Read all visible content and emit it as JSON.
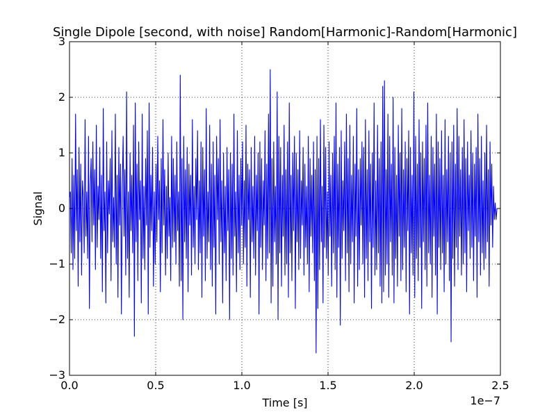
{
  "chart_data": {
    "type": "line",
    "title": "Single  Dipole [second, with noise] Random[Harmonic]-Random[Harmonic]",
    "xlabel": "Time [s]",
    "ylabel": "Signal",
    "x_multiplier_label": "1e−7",
    "xlim": [
      0.0,
      2.5
    ],
    "ylim": [
      -3,
      3
    ],
    "x_ticks": [
      0.0,
      0.5,
      1.0,
      1.5,
      2.0,
      2.5
    ],
    "x_tick_labels": [
      "0.0",
      "0.5",
      "1.0",
      "1.5",
      "2.0",
      "2.5"
    ],
    "y_ticks": [
      -3,
      -2,
      -1,
      0,
      1,
      2,
      3
    ],
    "y_tick_labels": [
      "−3",
      "−2",
      "−1",
      "0",
      "1",
      "2",
      "3"
    ],
    "grid": true,
    "series": [
      {
        "color": "#0000ff",
        "x_start": 0.0,
        "x_end": 2.48,
        "values": [
          0.2,
          0.3,
          -0.8,
          0.9,
          -1.1,
          0.6,
          -0.9,
          1.7,
          -0.4,
          0.7,
          -1.4,
          1.1,
          -0.6,
          0.8,
          -1.2,
          0.5,
          0.2,
          -0.8,
          1.6,
          -0.5,
          0.3,
          -0.9,
          1.3,
          -1.8,
          0.4,
          0.9,
          -0.6,
          1.2,
          -0.3,
          0.7,
          -1.1,
          1.5,
          -0.7,
          0.4,
          -0.2,
          1.1,
          -0.9,
          0.6,
          -1.5,
          1.8,
          -0.4,
          0.3,
          -1.7,
          1.2,
          -0.8,
          0.5,
          -0.1,
          0.9,
          -1.3,
          1.4,
          -0.6,
          0.2,
          -0.7,
          1.7,
          -1.0,
          0.6,
          -1.6,
          1.1,
          -0.3,
          0.8,
          -1.9,
          0.4,
          1.3,
          -0.5,
          0.7,
          -1.2,
          2.1,
          -0.9,
          0.3,
          -1.6,
          1.0,
          -0.4,
          0.6,
          -0.8,
          1.5,
          -2.3,
          1.9,
          -0.6,
          0.8,
          -1.3,
          1.2,
          -0.2,
          0.5,
          -1.7,
          1.7,
          -0.9,
          0.4,
          -1.1,
          0.9,
          -0.3,
          1.4,
          -1.9,
          1.9,
          -0.7,
          0.6,
          -0.4,
          1.1,
          -1.4,
          0.3,
          -1.0,
          0.8,
          -0.6,
          1.3,
          -0.2,
          0.5,
          -1.5,
          0.9,
          -0.8,
          1.6,
          -0.3,
          0.7,
          -1.2,
          0.4,
          -0.9,
          1.0,
          -0.5,
          0.2,
          -1.3,
          1.3,
          -0.7,
          0.9,
          -0.6,
          0.6,
          -1.0,
          1.2,
          -0.4,
          0.3,
          -1.4,
          2.4,
          -1.3,
          0.9,
          -2.0,
          1.3,
          -0.6,
          0.7,
          -0.9,
          1.1,
          -1.5,
          0.8,
          -0.3,
          0.6,
          -1.2,
          1.6,
          -0.7,
          0.4,
          -1.0,
          0.9,
          -0.2,
          1.4,
          -1.1,
          0.5,
          -0.8,
          1.2,
          -1.6,
          1.1,
          -0.5,
          0.7,
          -1.3,
          1.8,
          -0.9,
          0.3,
          -0.6,
          1.5,
          -1.1,
          0.8,
          -1.4,
          1.2,
          -0.7,
          0.6,
          -1.9,
          1.3,
          -0.2,
          0.9,
          -1.0,
          1.6,
          -0.6,
          0.5,
          -1.7,
          1.0,
          -0.8,
          0.4,
          -1.3,
          1.1,
          -0.4,
          0.7,
          -2.0,
          1.0,
          -0.9,
          0.8,
          -1.2,
          1.7,
          -0.5,
          0.3,
          -1.5,
          1.4,
          -0.8,
          0.6,
          -1.1,
          0.9,
          -0.3,
          1.2,
          -1.0,
          0.5,
          -0.7,
          1.5,
          -1.4,
          0.8,
          -0.2,
          0.7,
          -1.6,
          1.1,
          -0.6,
          0.4,
          -0.9,
          1.3,
          -1.2,
          0.6,
          -0.4,
          1.0,
          -1.9,
          1.2,
          -0.7,
          0.9,
          -1.1,
          0.5,
          -0.3,
          1.4,
          -1.3,
          0.8,
          -0.9,
          1.7,
          -0.8,
          2.5,
          -1.7,
          0.9,
          -1.4,
          1.2,
          -0.6,
          0.4,
          -1.0,
          2.1,
          -2.0,
          1.3,
          -0.8,
          1.1,
          -1.4,
          0.6,
          -0.5,
          1.5,
          -1.2,
          0.7,
          -1.0,
          1.2,
          -1.6,
          1.9,
          -0.8,
          0.6,
          -1.3,
          1.0,
          -0.4,
          1.3,
          -1.8,
          1.0,
          -0.6,
          0.7,
          -1.1,
          1.4,
          -0.9,
          0.5,
          -0.3,
          1.1,
          -1.2,
          0.8,
          -0.7,
          0.4,
          -1.0,
          1.3,
          -1.5,
          0.9,
          -0.5,
          0.6,
          -0.8,
          1.2,
          -1.3,
          0.7,
          -2.6,
          1.3,
          -1.8,
          0.9,
          -1.1,
          1.6,
          -0.6,
          0.4,
          -1.7,
          1.5,
          -0.7,
          1.1,
          -0.9,
          0.3,
          -1.2,
          1.2,
          -0.5,
          0.6,
          -1.4,
          1.0,
          -0.8,
          1.3,
          -1.1,
          1.9,
          -1.6,
          0.8,
          -0.7,
          1.1,
          -2.1,
          1.4,
          -0.9,
          0.5,
          -0.4,
          1.2,
          -1.3,
          1.7,
          -0.8,
          0.9,
          -1.5,
          1.5,
          -1.0,
          0.6,
          -0.6,
          1.3,
          -1.7,
          0.8,
          -0.5,
          1.8,
          -1.4,
          0.7,
          -1.1,
          0.9,
          -0.3,
          1.2,
          -1.0,
          1.1,
          -1.6,
          1.6,
          -0.9,
          0.7,
          -1.3,
          1.4,
          -0.6,
          0.8,
          -1.8,
          1.0,
          -0.7,
          1.9,
          -1.2,
          0.5,
          -1.1,
          1.5,
          -0.8,
          0.9,
          -1.4,
          1.2,
          -1.7,
          2.2,
          -1.5,
          2.3,
          -1.2,
          0.7,
          -1.0,
          1.7,
          -1.6,
          1.3,
          -0.6,
          0.8,
          -1.2,
          2.0,
          -1.7,
          1.1,
          -0.9,
          0.6,
          -1.4,
          1.5,
          -0.5,
          1.0,
          -1.3,
          1.8,
          -1.1,
          0.7,
          -0.7,
          1.2,
          -1.5,
          0.9,
          -0.4,
          1.4,
          -1.9,
          1.1,
          -0.8,
          0.6,
          -1.2,
          2.1,
          -1.6,
          1.3,
          -0.9,
          0.8,
          -1.3,
          1.6,
          -0.7,
          1.0,
          -1.8,
          1.2,
          -0.6,
          0.9,
          -1.1,
          1.5,
          -1.4,
          1.9,
          -0.8,
          0.6,
          -1.0,
          1.3,
          -1.6,
          1.1,
          -0.5,
          0.8,
          -1.2,
          1.7,
          -1.9,
          1.2,
          -0.7,
          0.9,
          -1.1,
          1.4,
          -0.8,
          0.6,
          -1.5,
          1.6,
          -1.0,
          0.7,
          -0.6,
          1.3,
          -1.3,
          1.0,
          -2.4,
          1.2,
          -0.9,
          1.5,
          -1.4,
          0.8,
          -0.7,
          1.8,
          -1.1,
          1.3,
          -0.5,
          0.7,
          -1.2,
          1.1,
          -1.0,
          1.6,
          -0.8,
          0.9,
          -1.5,
          1.2,
          -0.4,
          0.6,
          -0.9,
          1.4,
          -0.7,
          1.0,
          -1.3,
          0.8,
          -0.5,
          1.1,
          -1.6,
          1.7,
          -0.6,
          0.9,
          -1.2,
          1.3,
          -0.8,
          0.5,
          -1.1,
          1.0,
          -0.9,
          1.5,
          -0.6,
          0.7,
          -1.4,
          1.2,
          -0.3,
          0.8,
          -0.7,
          0.4,
          -0.2,
          0.1,
          -0.2,
          0.0
        ]
      }
    ]
  }
}
